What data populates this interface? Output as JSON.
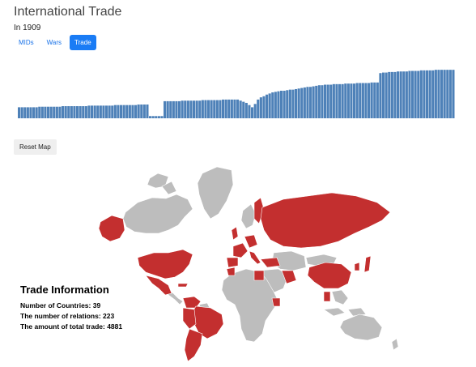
{
  "header": {
    "title": "International Trade",
    "subtitle": "In 1909"
  },
  "tabs": [
    {
      "label": "MIDs",
      "active": false
    },
    {
      "label": "Wars",
      "active": false
    },
    {
      "label": "Trade",
      "active": true
    }
  ],
  "timeline": {
    "bar_color": "#4e81b8",
    "values": [
      0.2,
      0.2,
      0.2,
      0.2,
      0.2,
      0.2,
      0.2,
      0.21,
      0.21,
      0.21,
      0.21,
      0.21,
      0.21,
      0.21,
      0.21,
      0.22,
      0.22,
      0.22,
      0.22,
      0.22,
      0.22,
      0.22,
      0.22,
      0.22,
      0.23,
      0.23,
      0.23,
      0.23,
      0.23,
      0.23,
      0.23,
      0.23,
      0.23,
      0.24,
      0.24,
      0.24,
      0.24,
      0.24,
      0.24,
      0.24,
      0.24,
      0.25,
      0.25,
      0.25,
      0.25,
      0.04,
      0.04,
      0.04,
      0.04,
      0.04,
      0.31,
      0.31,
      0.31,
      0.31,
      0.31,
      0.31,
      0.32,
      0.32,
      0.32,
      0.32,
      0.32,
      0.32,
      0.32,
      0.33,
      0.33,
      0.33,
      0.33,
      0.33,
      0.33,
      0.33,
      0.34,
      0.34,
      0.34,
      0.34,
      0.34,
      0.34,
      0.32,
      0.3,
      0.28,
      0.24,
      0.2,
      0.26,
      0.34,
      0.38,
      0.4,
      0.43,
      0.45,
      0.47,
      0.48,
      0.49,
      0.5,
      0.5,
      0.51,
      0.52,
      0.52,
      0.53,
      0.54,
      0.55,
      0.56,
      0.57,
      0.57,
      0.58,
      0.59,
      0.6,
      0.6,
      0.61,
      0.61,
      0.61,
      0.62,
      0.62,
      0.62,
      0.62,
      0.63,
      0.63,
      0.63,
      0.63,
      0.64,
      0.64,
      0.64,
      0.64,
      0.64,
      0.65,
      0.65,
      0.65,
      0.82,
      0.83,
      0.83,
      0.84,
      0.84,
      0.84,
      0.85,
      0.85,
      0.85,
      0.85,
      0.86,
      0.86,
      0.86,
      0.86,
      0.87,
      0.87,
      0.87,
      0.87,
      0.87,
      0.88,
      0.88,
      0.88,
      0.88,
      0.88,
      0.88,
      0.88
    ]
  },
  "reset_button": {
    "label": "Reset Map"
  },
  "map": {
    "trade_color": "#c32f2f",
    "no_trade_color": "#bdbdbd",
    "border_color": "#ffffff"
  },
  "info_panel": {
    "heading": "Trade Information",
    "countries": "Number of Countries: 39",
    "relations": "The number of relations: 223",
    "total": "The amount of total trade: 4881"
  }
}
